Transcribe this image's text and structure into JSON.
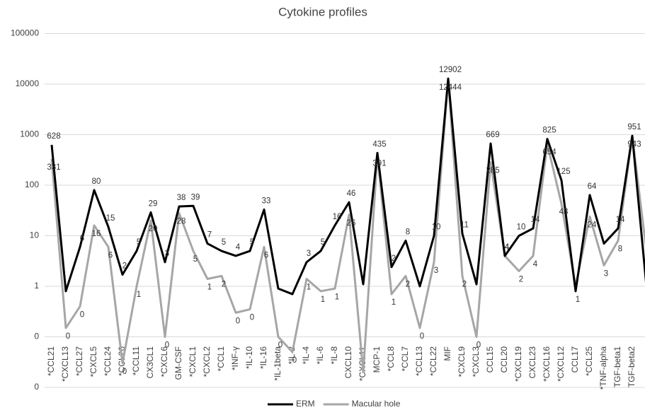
{
  "chart_data": {
    "type": "line",
    "title": "Cytokine profiles",
    "categories": [
      "*CCL21",
      "*CXCL13",
      "*CCL27",
      "*CXCL5",
      "*CCL24",
      "*CCL26",
      "*CCL11",
      "CX3CL1",
      "*CXCL6",
      "GM-CSF",
      "*CXCL1",
      "*CXCL2",
      "*CCL1",
      "*INF-γ",
      "*IL-10",
      "*IL-16",
      "*IL-1beta",
      "*IL-2",
      "*IL-4",
      "*IL-6",
      "*IL-8",
      "CXCL10",
      "*CXCL11",
      "MCP-1",
      "*CCL8",
      "*CCL7",
      "*CCL13",
      "*CCL22",
      "MIF",
      "*CXCL9",
      "*CXCL3",
      "CCL15",
      "CCL20",
      "*CXCL19",
      "CXCL23",
      "*CXCL16",
      "*CXCL12",
      "CCL17",
      "*CCL25",
      "*TNF-alpha",
      "TGF-beta1",
      "TGF-beta2",
      null
    ],
    "series": [
      {
        "name": "ERM",
        "color": "#000000",
        "values": [
          628,
          0.8,
          6,
          80,
          15,
          1.7,
          5,
          29,
          3,
          38,
          39,
          7,
          5,
          4,
          5,
          33,
          0.9,
          0.7,
          3,
          5,
          16,
          46,
          1.1,
          435,
          2.4,
          8,
          1,
          10,
          12902,
          11,
          1.1,
          669,
          4,
          10,
          14,
          825,
          125,
          0.8,
          64,
          7,
          14,
          951,
          1
        ],
        "value_labels": [
          "628",
          null,
          "6",
          "80",
          "15",
          "2",
          "5",
          "29",
          "3",
          "38",
          "39",
          "7",
          "5",
          "4",
          "5",
          "33",
          null,
          null,
          "3",
          "5",
          "16",
          "46",
          null,
          "435",
          "2",
          "8",
          null,
          "10",
          "12902",
          "11",
          null,
          "669",
          "4",
          "10",
          "14",
          "825",
          "125",
          "1",
          "64",
          null,
          "14",
          "951",
          null
        ]
      },
      {
        "name": "Macular hole",
        "color": "#a6a6a6",
        "values": [
          331,
          0.15,
          0.4,
          16,
          6,
          0.03,
          1,
          20,
          0.1,
          28,
          5,
          1.4,
          1.6,
          0.3,
          0.35,
          6,
          0.1,
          0.05,
          1.4,
          0.8,
          0.9,
          26,
          0.02,
          391,
          0.7,
          1.6,
          0.15,
          3,
          12444,
          1.6,
          0.1,
          285,
          4,
          2,
          4,
          654,
          43,
          1,
          24,
          2.6,
          8,
          943,
          5
        ],
        "value_labels": [
          "331",
          "0",
          "0",
          "16",
          "6",
          "0",
          "1",
          "20",
          "0",
          "28",
          "5",
          "1",
          "2",
          "0",
          "0",
          "6",
          "0",
          "0",
          "1",
          "1",
          "1",
          "26",
          null,
          "391",
          "1",
          "2",
          "0",
          "3",
          "12444",
          "2",
          "0",
          "285",
          "4",
          "2",
          "4",
          "654",
          "43",
          null,
          "24",
          "3",
          "8",
          "943",
          null
        ]
      }
    ],
    "log_scale": true,
    "ylim": [
      0.01,
      100000
    ],
    "yticks": [
      {
        "value": 0.01,
        "label": "0"
      },
      {
        "value": 0.1,
        "label": "0"
      },
      1,
      10,
      100,
      1000,
      10000,
      100000
    ],
    "grid": true,
    "legend": "bottom"
  }
}
